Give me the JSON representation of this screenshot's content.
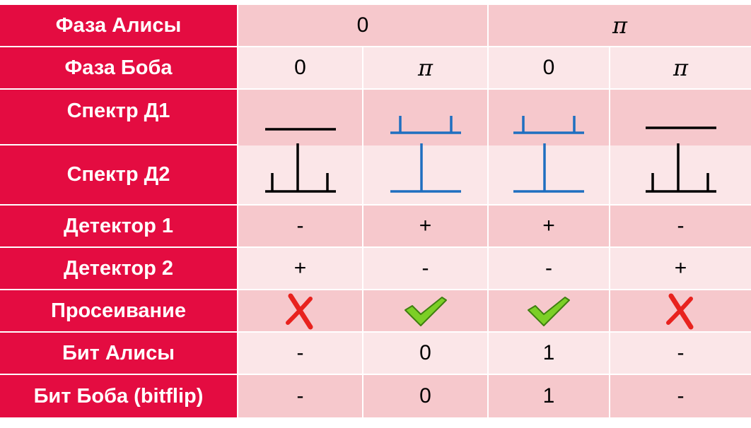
{
  "colors": {
    "header": "#e40c41",
    "row_dark": "#f6c8cc",
    "row_light": "#fbe6e8",
    "spectrum_black": "#000000",
    "spectrum_blue": "#1f6fc0",
    "cross": "#e8221e",
    "check": "#7ccf26"
  },
  "rows": {
    "alice_phase": {
      "label": "Фаза Алисы",
      "values": [
        "0",
        "π"
      ]
    },
    "bob_phase": {
      "label": "Фаза Боба",
      "values": [
        "0",
        "π",
        "0",
        "π"
      ]
    },
    "spectrum_d1": {
      "label": "Спектр Д1",
      "icons": [
        "spectrum-flat-icon",
        "spectrum-two-peaks-icon",
        "spectrum-two-peaks-icon",
        "spectrum-flat-icon"
      ]
    },
    "spectrum_d2": {
      "label": "Спектр Д2",
      "icons": [
        "spectrum-three-peaks-icon",
        "spectrum-single-peak-icon",
        "spectrum-single-peak-icon",
        "spectrum-three-peaks-icon"
      ]
    },
    "detector1": {
      "label": "Детектор 1",
      "values": [
        "-",
        "+",
        "+",
        "-"
      ]
    },
    "detector2": {
      "label": "Детектор 2",
      "values": [
        "+",
        "-",
        "-",
        "+"
      ]
    },
    "sifting": {
      "label": "Просеивание",
      "icons": [
        "cross-icon",
        "check-icon",
        "check-icon",
        "cross-icon"
      ]
    },
    "alice_bit": {
      "label": "Бит Алисы",
      "values": [
        "-",
        "0",
        "1",
        "-"
      ]
    },
    "bob_bit": {
      "label": "Бит Боба (bitflip)",
      "values": [
        "-",
        "0",
        "1",
        "-"
      ]
    }
  }
}
